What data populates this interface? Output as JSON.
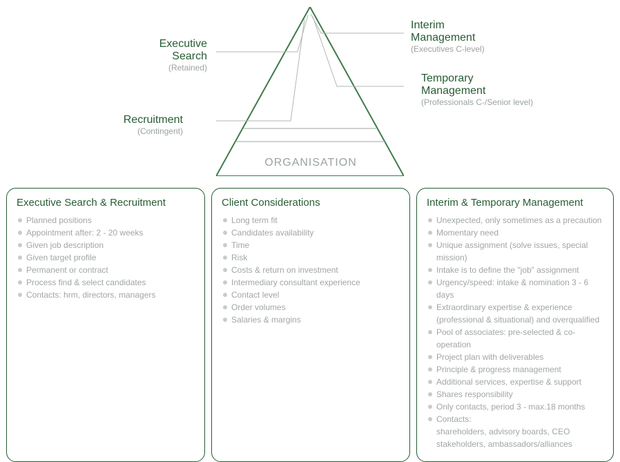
{
  "colors": {
    "brand": "#265c33",
    "muted": "#9aa39e",
    "bullet": "#c7ccc8",
    "triStroke": "#3d7a4a"
  },
  "pyramid": {
    "base_label": "ORGANISATION",
    "labels": {
      "exec_search": {
        "title_l1": "Executive",
        "title_l2": "Search",
        "sub": "(Retained)"
      },
      "recruitment": {
        "title": "Recruitment",
        "sub": "(Contingent)"
      },
      "interim": {
        "title_l1": "Interim",
        "title_l2": "Management",
        "sub": "(Executives C-level)"
      },
      "temporary": {
        "title_l1": "Temporary",
        "title_l2": "Management",
        "sub": "(Professionals C-/Senior level)"
      }
    }
  },
  "boxes": {
    "b1": {
      "title": "Executive Search & Recruitment",
      "items": [
        "Planned positions",
        "Appointment after: 2 - 20 weeks",
        "Given job description",
        "Given target profile",
        "Permanent or contract",
        "Process find & select candidates",
        "Contacts: hrm, directors, managers"
      ]
    },
    "b2": {
      "title": "Client Considerations",
      "items": [
        "Long term fit",
        "Candidates availability",
        "Time",
        "Risk",
        "Costs & return on investment",
        "Intermediary consultant experience",
        "Contact level",
        "Order volumes",
        "Salaries & margins"
      ]
    },
    "b3": {
      "title": "Interim & Temporary Management",
      "items": [
        "Unexpected, only sometimes as a precaution",
        "Momentary need",
        "Unique assignment (solve issues, special mission)",
        "Intake is to define the \"job\" assignment",
        "Urgency/speed: intake & nomination 3 - 6 days",
        "Extraordinary expertise & experience (professional & situational) and overqualified",
        "Pool of associates: pre-selected & co-operation",
        "Project plan with deliverables",
        "Principle & progress management",
        "Additional services, expertise & support",
        "Shares responsibility",
        "Only contacts, period 3 - max.18 months",
        "Contacts:"
      ],
      "sublines": [
        "shareholders,  advisory boards,  CEO",
        "stakeholders,  ambassadors/alliances"
      ]
    }
  }
}
